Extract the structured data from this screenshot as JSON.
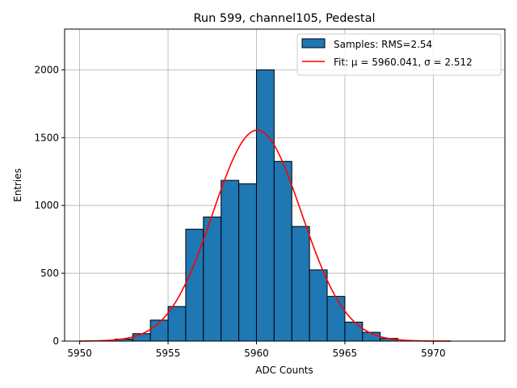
{
  "chart_data": {
    "type": "bar",
    "title": "Run 599, channel105, Pedestal",
    "xlabel": "ADC Counts",
    "ylabel": "Entries",
    "xlim": [
      5949.15,
      5974.05
    ],
    "ylim": [
      0,
      2300
    ],
    "grid": true,
    "legend_placement": "top-right",
    "x_ticks": [
      5950,
      5955,
      5960,
      5965,
      5970
    ],
    "y_ticks": [
      0,
      500,
      1000,
      1500,
      2000
    ],
    "histogram": {
      "name": "Samples: RMS=2.54",
      "color": "#1f77b4",
      "edge_color": "#000000",
      "bins": [
        {
          "x0": 5952.0,
          "x1": 5953.0,
          "count": 15
        },
        {
          "x0": 5953.0,
          "x1": 5954.0,
          "count": 55
        },
        {
          "x0": 5954.0,
          "x1": 5955.0,
          "count": 155
        },
        {
          "x0": 5955.0,
          "x1": 5956.0,
          "count": 255
        },
        {
          "x0": 5956.0,
          "x1": 5957.0,
          "count": 825
        },
        {
          "x0": 5957.0,
          "x1": 5958.0,
          "count": 915
        },
        {
          "x0": 5958.0,
          "x1": 5959.0,
          "count": 1185
        },
        {
          "x0": 5959.0,
          "x1": 5960.0,
          "count": 1160
        },
        {
          "x0": 5960.0,
          "x1": 5961.0,
          "count": 2000
        },
        {
          "x0": 5961.0,
          "x1": 5962.0,
          "count": 1325
        },
        {
          "x0": 5962.0,
          "x1": 5963.0,
          "count": 845
        },
        {
          "x0": 5963.0,
          "x1": 5964.0,
          "count": 525
        },
        {
          "x0": 5964.0,
          "x1": 5965.0,
          "count": 330
        },
        {
          "x0": 5965.0,
          "x1": 5966.0,
          "count": 140
        },
        {
          "x0": 5966.0,
          "x1": 5967.0,
          "count": 65
        },
        {
          "x0": 5967.0,
          "x1": 5968.0,
          "count": 20
        }
      ]
    },
    "fit": {
      "name": "Fit: μ = 5960.041, σ = 2.512",
      "color": "#ff0000",
      "mu": 5960.041,
      "sigma": 2.512,
      "amplitude": 1555,
      "x_range": [
        5950,
        5971
      ]
    }
  }
}
